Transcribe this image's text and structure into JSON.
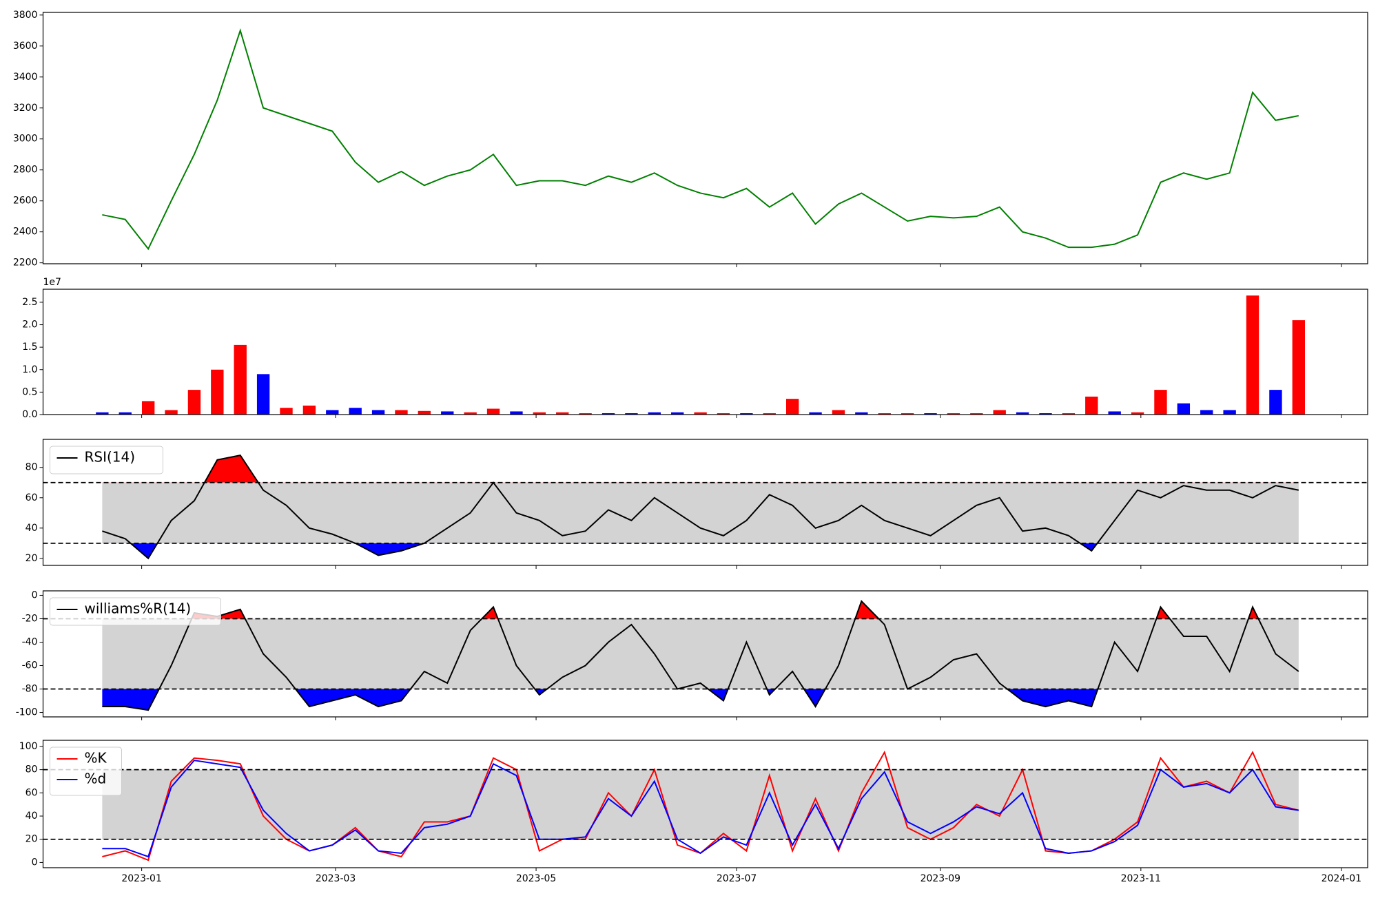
{
  "chart_data": [
    {
      "type": "line",
      "x": [
        "2022-12-20",
        "2022-12-27",
        "2023-01-03",
        "2023-01-10",
        "2023-01-17",
        "2023-01-24",
        "2023-01-31",
        "2023-02-07",
        "2023-02-14",
        "2023-02-21",
        "2023-02-28",
        "2023-03-07",
        "2023-03-14",
        "2023-03-21",
        "2023-03-28",
        "2023-04-04",
        "2023-04-11",
        "2023-04-18",
        "2023-04-25",
        "2023-05-02",
        "2023-05-09",
        "2023-05-16",
        "2023-05-23",
        "2023-05-30",
        "2023-06-06",
        "2023-06-13",
        "2023-06-20",
        "2023-06-27",
        "2023-07-04",
        "2023-07-11",
        "2023-07-18",
        "2023-07-25",
        "2023-08-01",
        "2023-08-08",
        "2023-08-15",
        "2023-08-22",
        "2023-08-29",
        "2023-09-05",
        "2023-09-12",
        "2023-09-19",
        "2023-09-26",
        "2023-10-03",
        "2023-10-10",
        "2023-10-17",
        "2023-10-24",
        "2023-10-31",
        "2023-11-07",
        "2023-11-14",
        "2023-11-21",
        "2023-11-28",
        "2023-12-05",
        "2023-12-12",
        "2023-12-19"
      ],
      "series": [
        {
          "color": "#008000",
          "values": [
            2510,
            2480,
            2290,
            2600,
            2900,
            3250,
            3700,
            3200,
            3150,
            3100,
            3050,
            2850,
            2720,
            2790,
            2700,
            2760,
            2800,
            2900,
            2700,
            2730,
            2730,
            2700,
            2760,
            2720,
            2780,
            2700,
            2650,
            2620,
            2680,
            2560,
            2650,
            2450,
            2580,
            2650,
            2560,
            2470,
            2500,
            2490,
            2500,
            2560,
            2400,
            2360,
            2300,
            2300,
            2320,
            2380,
            2720,
            2780,
            2740,
            2780,
            3300,
            3120,
            3150
          ]
        }
      ],
      "ylim": [
        2194,
        3817
      ],
      "yticks": [
        2200,
        2400,
        2600,
        2800,
        3000,
        3200,
        3400,
        3600,
        3800
      ]
    },
    {
      "type": "bar",
      "values": [
        0.05,
        0.05,
        0.3,
        0.1,
        0.55,
        1.0,
        1.55,
        0.9,
        0.15,
        0.2,
        0.1,
        0.15,
        0.1,
        0.1,
        0.08,
        0.07,
        0.05,
        0.13,
        0.07,
        0.05,
        0.05,
        0.03,
        0.03,
        0.03,
        0.05,
        0.05,
        0.05,
        0.03,
        0.03,
        0.03,
        0.35,
        0.05,
        0.1,
        0.05,
        0.03,
        0.03,
        0.03,
        0.03,
        0.03,
        0.1,
        0.05,
        0.03,
        0.03,
        0.4,
        0.07,
        0.05,
        0.55,
        0.25,
        0.1,
        0.1,
        2.65,
        0.55,
        2.1
      ],
      "colors": [
        "blue",
        "blue",
        "red",
        "red",
        "red",
        "red",
        "red",
        "blue",
        "red",
        "red",
        "blue",
        "blue",
        "blue",
        "red",
        "red",
        "blue",
        "red",
        "red",
        "blue",
        "red",
        "red",
        "red",
        "blue",
        "blue",
        "blue",
        "blue",
        "red",
        "red",
        "blue",
        "red",
        "red",
        "blue",
        "red",
        "blue",
        "red",
        "red",
        "blue",
        "red",
        "red",
        "red",
        "blue",
        "blue",
        "red",
        "red",
        "blue",
        "red",
        "red",
        "blue",
        "blue",
        "blue",
        "red",
        "blue",
        "red"
      ],
      "offset_label": "1e7",
      "ylim": [
        0,
        2.79
      ],
      "yticks": [
        {
          "value": 0,
          "label": "0.0"
        },
        0.5,
        {
          "value": 1,
          "label": "1.0"
        },
        1.5,
        {
          "value": 2,
          "label": "2.0"
        },
        2.5
      ]
    },
    {
      "type": "line",
      "series": [
        {
          "name": "RSI(14)",
          "color": "#000000",
          "values": [
            38,
            33,
            20,
            45,
            58,
            85,
            88,
            65,
            55,
            40,
            36,
            30,
            22,
            25,
            30,
            40,
            50,
            70,
            50,
            45,
            35,
            38,
            52,
            45,
            60,
            50,
            40,
            35,
            45,
            62,
            55,
            40,
            45,
            55,
            45,
            40,
            35,
            45,
            55,
            60,
            38,
            40,
            35,
            25,
            45,
            65,
            60,
            68,
            65,
            65,
            60,
            68,
            65
          ]
        }
      ],
      "hlines": [
        30,
        70
      ],
      "band_color": "#d3d3d3",
      "fill_above_color": "red",
      "fill_below_color": "blue",
      "legend": "upper left",
      "ylim": [
        15.4,
        98.5
      ],
      "yticks": [
        20,
        40,
        60,
        80
      ]
    },
    {
      "type": "line",
      "series": [
        {
          "name": "williams%R(14)",
          "color": "#000000",
          "values": [
            -95,
            -95,
            -98,
            -60,
            -15,
            -18,
            -12,
            -50,
            -70,
            -95,
            -90,
            -85,
            -95,
            -90,
            -65,
            -75,
            -30,
            -10,
            -60,
            -85,
            -70,
            -60,
            -40,
            -25,
            -50,
            -80,
            -75,
            -90,
            -40,
            -85,
            -65,
            -95,
            -60,
            -5,
            -25,
            -80,
            -70,
            -55,
            -50,
            -75,
            -90,
            -95,
            -90,
            -95,
            -40,
            -65,
            -10,
            -35,
            -35,
            -65,
            -10,
            -50,
            -65
          ]
        }
      ],
      "hlines": [
        -80,
        -20
      ],
      "band_color": "#d3d3d3",
      "fill_above_color": "red",
      "fill_below_color": "blue",
      "legend": "upper left",
      "ylim": [
        -103.8,
        3.8
      ],
      "yticks": [
        -100,
        -80,
        -60,
        -40,
        -20,
        0
      ]
    },
    {
      "type": "line",
      "series": [
        {
          "name": "%K",
          "color": "red",
          "values": [
            5,
            10,
            2,
            70,
            90,
            88,
            85,
            40,
            20,
            10,
            15,
            30,
            10,
            5,
            35,
            35,
            40,
            90,
            80,
            10,
            20,
            20,
            60,
            40,
            80,
            15,
            8,
            25,
            10,
            75,
            10,
            55,
            10,
            60,
            95,
            30,
            20,
            30,
            50,
            40,
            80,
            10,
            8,
            10,
            20,
            35,
            90,
            65,
            70,
            60,
            95,
            50,
            45
          ]
        },
        {
          "name": "%d",
          "color": "blue",
          "values": [
            12,
            12,
            5,
            65,
            88,
            85,
            82,
            45,
            25,
            10,
            15,
            28,
            10,
            8,
            30,
            33,
            40,
            85,
            75,
            20,
            20,
            22,
            55,
            40,
            70,
            20,
            8,
            22,
            15,
            60,
            15,
            50,
            12,
            55,
            78,
            35,
            25,
            35,
            48,
            42,
            60,
            12,
            8,
            10,
            18,
            32,
            80,
            65,
            68,
            60,
            80,
            48,
            45
          ]
        }
      ],
      "hlines": [
        20,
        80
      ],
      "band_color": "#d3d3d3",
      "legend": "upper left",
      "ylim": [
        -4.5,
        105.3
      ],
      "yticks": [
        0,
        20,
        40,
        60,
        80,
        100
      ],
      "xlim": [
        "2022-12-02",
        "2024-01-09"
      ],
      "xticks": [
        {
          "value": "2023-01-01",
          "label": "2023-01"
        },
        {
          "value": "2023-03-01",
          "label": "2023-03"
        },
        {
          "value": "2023-05-01",
          "label": "2023-05"
        },
        {
          "value": "2023-07-01",
          "label": "2023-07"
        },
        {
          "value": "2023-09-01",
          "label": "2023-09"
        },
        {
          "value": "2023-11-01",
          "label": "2023-11"
        },
        {
          "value": "2024-01-01",
          "label": "2024-01"
        }
      ]
    }
  ]
}
